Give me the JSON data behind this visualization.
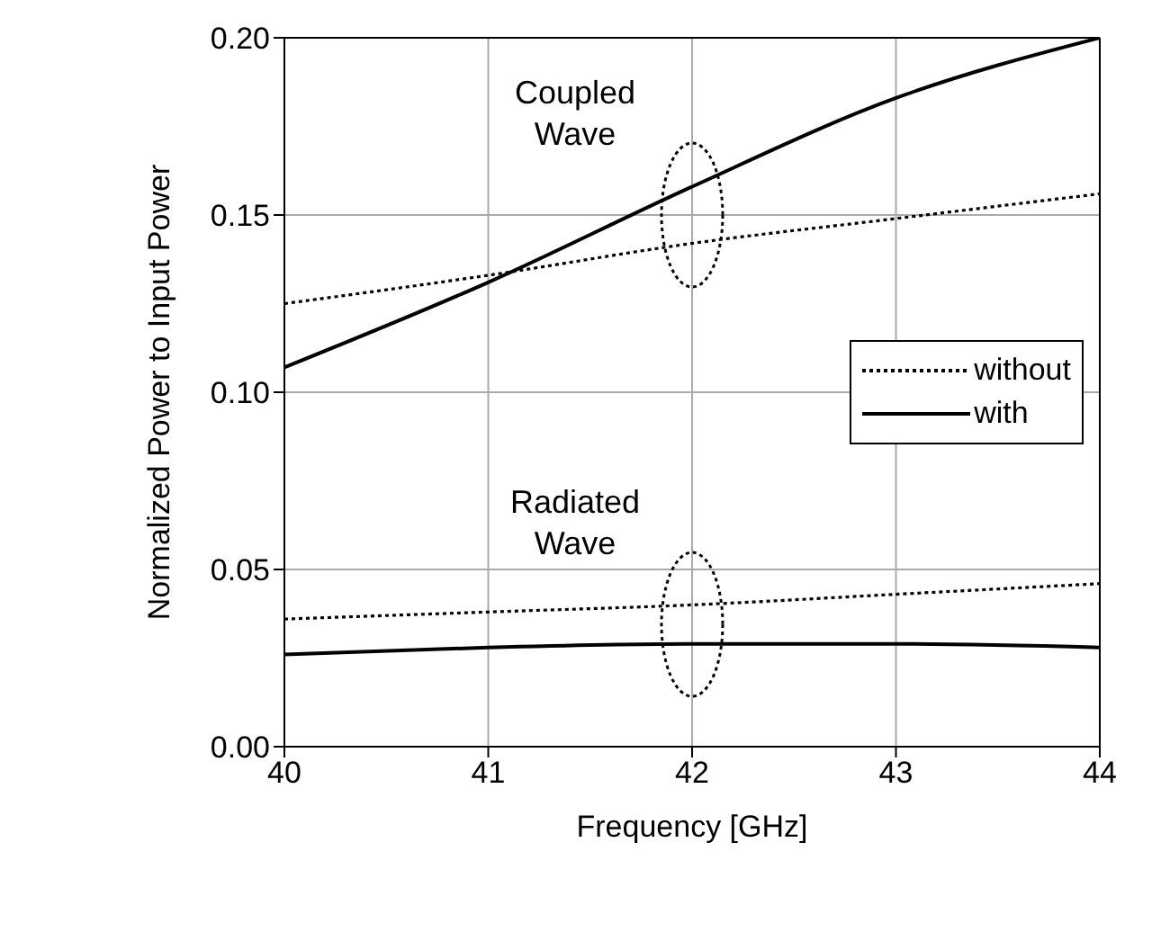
{
  "chart_data": {
    "type": "line",
    "xlabel": "Frequency [GHz]",
    "ylabel": "Normalized Power to Input Power",
    "x": [
      40,
      41,
      42,
      43,
      44
    ],
    "series": [
      {
        "name": "without",
        "color": "#000000",
        "line_style": "dotted",
        "values": [
          0.125,
          0.133,
          0.142,
          0.149,
          0.156
        ]
      },
      {
        "name": "with",
        "color": "#000000",
        "line_style": "solid",
        "values": [
          0.107,
          0.131,
          0.158,
          0.183,
          0.2
        ]
      },
      {
        "color": "#000000",
        "line_style": "dotted",
        "values": [
          0.036,
          0.038,
          0.04,
          0.043,
          0.046
        ]
      },
      {
        "color": "#000000",
        "line_style": "solid",
        "values": [
          0.026,
          0.028,
          0.029,
          0.029,
          0.028
        ]
      }
    ],
    "xlim": [
      40,
      44
    ],
    "xticks": [
      40,
      41,
      42,
      43,
      44
    ],
    "ylim": [
      0,
      0.2
    ],
    "yticks": [
      {
        "value": 0,
        "label": "0.00"
      },
      {
        "value": 0.05,
        "label": "0.05"
      },
      {
        "value": 0.1,
        "label": "0.10"
      },
      {
        "value": 0.15,
        "label": "0.15"
      },
      {
        "value": 0.2,
        "label": "0.20"
      }
    ],
    "annotations": [
      "Coupled Wave",
      "Radiated Wave"
    ],
    "grid": true,
    "legend": "right",
    "marker": "none"
  }
}
